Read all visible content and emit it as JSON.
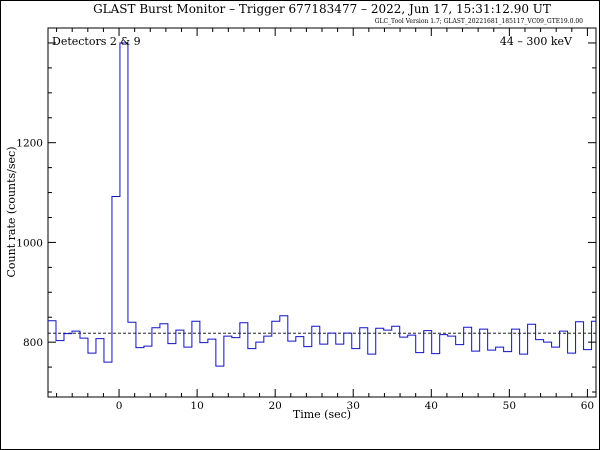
{
  "chart_data": {
    "type": "line",
    "title": "GLAST Burst Monitor  –  Trigger 677183477  –  2022, Jun 17, 15:31:12.90 UT",
    "subtitle": "GLC_Tool Version 1.7; GLAST_20221681_185117_VC09_GTE19.0.00",
    "xlabel": "Time (sec)",
    "ylabel": "Count rate (counts/sec)",
    "annotation_left": "Detectors 2 & 9",
    "annotation_right": "44 – 300 keV",
    "xlim": [
      -9.1,
      61.1
    ],
    "ylim": [
      690,
      1430
    ],
    "xticks": [
      0,
      10,
      20,
      30,
      40,
      50,
      60
    ],
    "yticks": [
      800,
      1000,
      1200
    ],
    "xtick_labels": [
      "0",
      "10",
      "20",
      "30",
      "40",
      "50",
      "60"
    ],
    "ytick_labels": [
      "800",
      "1000",
      "1200"
    ],
    "reference_level": 818,
    "bin_width": 1.024,
    "bin_start": -9.1,
    "values": [
      843,
      803,
      817,
      822,
      808,
      778,
      807,
      760,
      1092,
      1400,
      840,
      789,
      792,
      829,
      837,
      797,
      824,
      790,
      842,
      799,
      806,
      752,
      812,
      809,
      839,
      787,
      800,
      812,
      842,
      853,
      802,
      811,
      791,
      832,
      796,
      818,
      796,
      818,
      787,
      829,
      776,
      828,
      824,
      832,
      810,
      814,
      779,
      823,
      777,
      815,
      812,
      795,
      830,
      782,
      826,
      784,
      790,
      781,
      826,
      776,
      836,
      805,
      800,
      790,
      822,
      778,
      841,
      785,
      842
    ]
  }
}
